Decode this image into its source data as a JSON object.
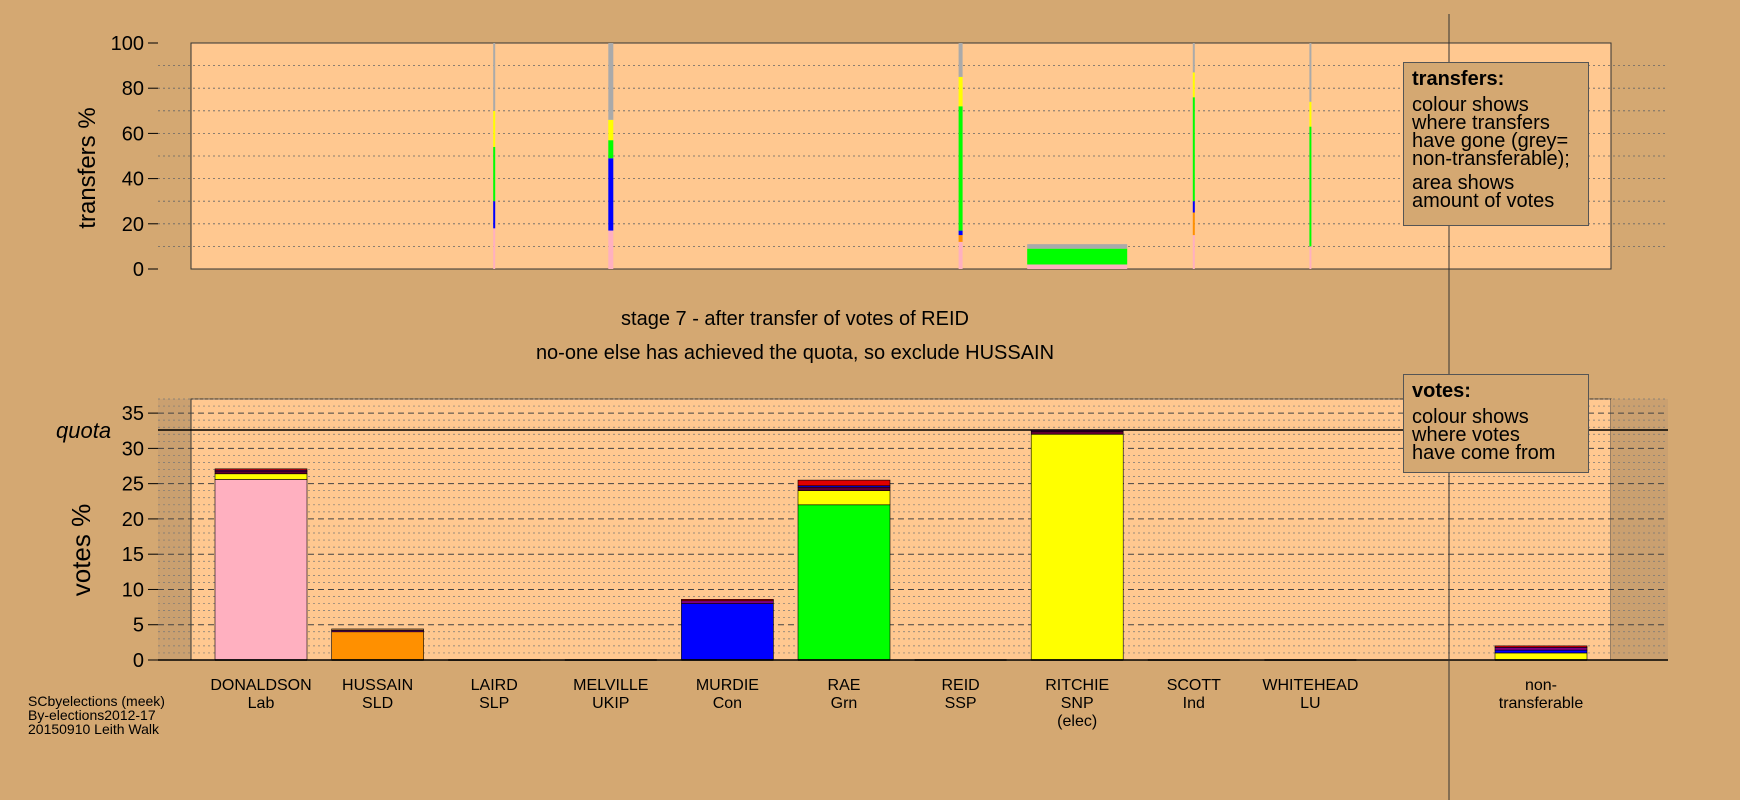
{
  "captions": {
    "stage": "stage 7 - after transfer of votes of REID",
    "decision": "no-one else has achieved the quota, so exclude HUSSAIN"
  },
  "notes": {
    "transfers": {
      "title": "transfers:",
      "lines": [
        "colour shows",
        "where transfers",
        "have gone (grey=",
        "non-transferable);",
        "area shows",
        "amount of votes"
      ]
    },
    "votes": {
      "title": "votes:",
      "lines": [
        "colour shows",
        "where votes",
        "have come from"
      ]
    }
  },
  "footer": [
    "SCbyelections (meek)",
    "By-elections2012-17",
    "20150910 Leith Walk"
  ],
  "colors": {
    "background": "#d4a872",
    "plot_bg": "#ffc890",
    "Lab": "#ffb0c0",
    "SLD": "#ff9000",
    "SLP": "#c00010",
    "UKIP": "#800080",
    "Con": "#0000ff",
    "Grn": "#00ff00",
    "SSP": "#e00000",
    "SNP": "#ffff00",
    "Ind": "#c08040",
    "LU": "#600030",
    "nontransferable": "#aaaaaa"
  },
  "chart_data": [
    {
      "type": "bar",
      "id": "transfers",
      "ylabel": "transfers %",
      "ylim": [
        0,
        100
      ],
      "yticks": [
        0,
        20,
        40,
        60,
        80,
        100
      ],
      "categories": [
        "DONALDSON",
        "HUSSAIN",
        "LAIRD",
        "MELVILLE",
        "MURDIE",
        "RAE",
        "REID",
        "RITCHIE",
        "SCOTT",
        "WHITEHEAD"
      ],
      "stacked": true,
      "bars": [
        {
          "category": "DONALDSON",
          "width_frac": 0.0,
          "segments": []
        },
        {
          "category": "HUSSAIN",
          "width_frac": 0.0,
          "segments": []
        },
        {
          "category": "LAIRD",
          "width_frac": 0.02,
          "segments": [
            {
              "to": "Lab",
              "value": 18
            },
            {
              "to": "Con",
              "value": 12
            },
            {
              "to": "Grn",
              "value": 24
            },
            {
              "to": "SNP",
              "value": 16
            },
            {
              "to": "nontransferable",
              "value": 30
            }
          ]
        },
        {
          "category": "MELVILLE",
          "width_frac": 0.05,
          "segments": [
            {
              "to": "Lab",
              "value": 17
            },
            {
              "to": "Con",
              "value": 32
            },
            {
              "to": "Grn",
              "value": 8
            },
            {
              "to": "SNP",
              "value": 9
            },
            {
              "to": "nontransferable",
              "value": 34
            }
          ]
        },
        {
          "category": "MURDIE",
          "width_frac": 0.0,
          "segments": []
        },
        {
          "category": "RAE",
          "width_frac": 0.0,
          "segments": []
        },
        {
          "category": "REID",
          "width_frac": 0.04,
          "segments": [
            {
              "to": "Lab",
              "value": 12
            },
            {
              "to": "SLD",
              "value": 3
            },
            {
              "to": "Con",
              "value": 2
            },
            {
              "to": "Grn",
              "value": 55
            },
            {
              "to": "SNP",
              "value": 13
            },
            {
              "to": "nontransferable",
              "value": 15
            }
          ]
        },
        {
          "category": "RITCHIE",
          "width_frac": 1.0,
          "segments": [
            {
              "to": "Lab",
              "value": 2
            },
            {
              "to": "Grn",
              "value": 7
            },
            {
              "to": "nontransferable",
              "value": 2
            }
          ]
        },
        {
          "category": "SCOTT",
          "width_frac": 0.02,
          "segments": [
            {
              "to": "Lab",
              "value": 15
            },
            {
              "to": "SLD",
              "value": 10
            },
            {
              "to": "Con",
              "value": 5
            },
            {
              "to": "Grn",
              "value": 46
            },
            {
              "to": "SNP",
              "value": 11
            },
            {
              "to": "nontransferable",
              "value": 13
            }
          ]
        },
        {
          "category": "WHITEHEAD",
          "width_frac": 0.02,
          "segments": [
            {
              "to": "Lab",
              "value": 10
            },
            {
              "to": "Grn",
              "value": 53
            },
            {
              "to": "SNP",
              "value": 11
            },
            {
              "to": "nontransferable",
              "value": 26
            }
          ]
        }
      ]
    },
    {
      "type": "bar",
      "id": "votes",
      "ylabel": "votes %",
      "ylim": [
        0,
        37
      ],
      "yticks": [
        0,
        5,
        10,
        15,
        20,
        25,
        30,
        35
      ],
      "quota": {
        "label": "quota",
        "value": 32.6
      },
      "stacked": true,
      "categories": [
        {
          "name": "DONALDSON",
          "party": "Lab"
        },
        {
          "name": "HUSSAIN",
          "party": "SLD"
        },
        {
          "name": "LAIRD",
          "party": "SLP"
        },
        {
          "name": "MELVILLE",
          "party": "UKIP"
        },
        {
          "name": "MURDIE",
          "party": "Con"
        },
        {
          "name": "RAE",
          "party": "Grn"
        },
        {
          "name": "REID",
          "party": "SSP"
        },
        {
          "name": "RITCHIE",
          "party": "SNP",
          "note": "(elec)"
        },
        {
          "name": "SCOTT",
          "party": "Ind"
        },
        {
          "name": "WHITEHEAD",
          "party": "LU"
        },
        {
          "name": "non-",
          "party": "transferable"
        }
      ],
      "stacks": [
        {
          "category": "DONALDSON",
          "segments": [
            {
              "from": "Lab",
              "value": 25.6
            },
            {
              "from": "SNP",
              "value": 0.8
            },
            {
              "from": "LU",
              "value": 0.3
            },
            {
              "from": "UKIP",
              "value": 0.2
            },
            {
              "from": "SLP",
              "value": 0.2
            }
          ]
        },
        {
          "category": "HUSSAIN",
          "segments": [
            {
              "from": "SLD",
              "value": 4.0
            },
            {
              "from": "UKIP",
              "value": 0.2
            },
            {
              "from": "Ind",
              "value": 0.2
            }
          ]
        },
        {
          "category": "LAIRD",
          "segments": []
        },
        {
          "category": "MELVILLE",
          "segments": []
        },
        {
          "category": "MURDIE",
          "segments": [
            {
              "from": "Con",
              "value": 8.0
            },
            {
              "from": "UKIP",
              "value": 0.4
            },
            {
              "from": "SSP",
              "value": 0.2
            }
          ]
        },
        {
          "category": "RAE",
          "segments": [
            {
              "from": "Grn",
              "value": 22.0
            },
            {
              "from": "SNP",
              "value": 2.0
            },
            {
              "from": "LU",
              "value": 0.5
            },
            {
              "from": "Con",
              "value": 0.2
            },
            {
              "from": "SSP",
              "value": 0.8
            }
          ]
        },
        {
          "category": "REID",
          "segments": []
        },
        {
          "category": "RITCHIE",
          "segments": [
            {
              "from": "SNP",
              "value": 32.0
            },
            {
              "from": "LU",
              "value": 0.4
            },
            {
              "from": "UKIP",
              "value": 0.2
            }
          ]
        },
        {
          "category": "SCOTT",
          "segments": []
        },
        {
          "category": "WHITEHEAD",
          "segments": []
        },
        {
          "category": "non-",
          "segments": [
            {
              "from": "SNP",
              "value": 1.0
            },
            {
              "from": "Con",
              "value": 0.4
            },
            {
              "from": "UKIP",
              "value": 0.4
            },
            {
              "from": "SSP",
              "value": 0.2
            }
          ]
        }
      ]
    }
  ]
}
